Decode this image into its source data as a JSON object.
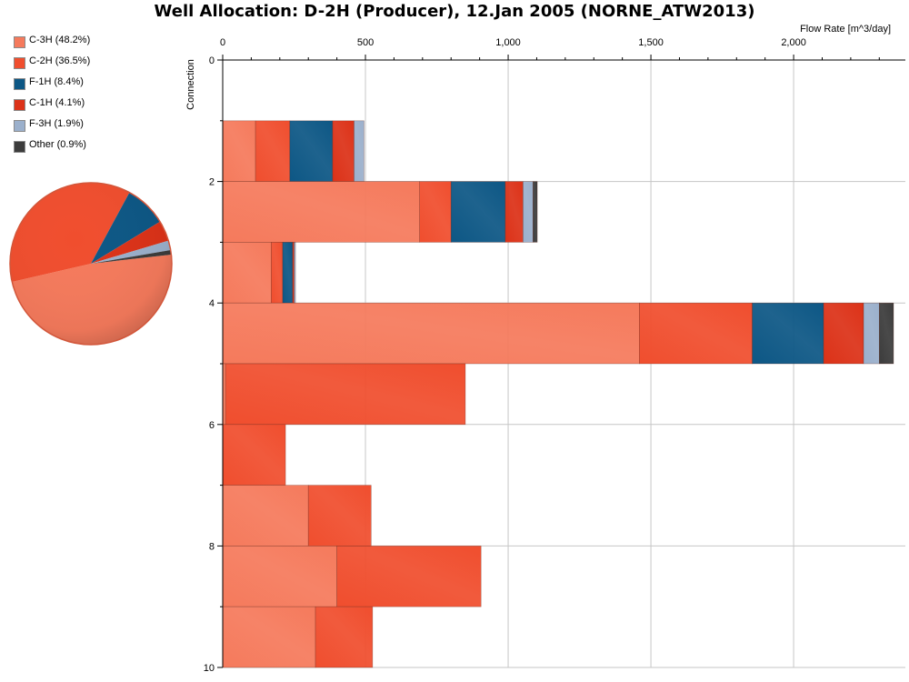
{
  "window": {
    "title": "Well Allocation: D-2H (Producer), 12.Jan 2005 (NORNE_ATW2013)"
  },
  "legend": {
    "items": [
      {
        "label": "C-3H (48.2%)",
        "color": "#f57a5c"
      },
      {
        "label": "C-2H (36.5%)",
        "color": "#f04e2e"
      },
      {
        "label": "F-1H (8.4%)",
        "color": "#0d5785"
      },
      {
        "label": "C-1H (4.1%)",
        "color": "#dc3218"
      },
      {
        "label": "F-3H (1.9%)",
        "color": "#9bb0cc"
      },
      {
        "label": "Other (0.9%)",
        "color": "#3c3c3c"
      }
    ]
  },
  "chart_data": [
    {
      "type": "pie",
      "title": "",
      "series": [
        {
          "name": "C-3H",
          "value": 48.2,
          "color": "#f57a5c"
        },
        {
          "name": "C-2H",
          "value": 36.5,
          "color": "#f04e2e"
        },
        {
          "name": "F-1H",
          "value": 8.4,
          "color": "#0d5785"
        },
        {
          "name": "C-1H",
          "value": 4.1,
          "color": "#dc3218"
        },
        {
          "name": "F-3H",
          "value": 1.9,
          "color": "#9bb0cc"
        },
        {
          "name": "Other",
          "value": 0.9,
          "color": "#3c3c3c"
        }
      ]
    },
    {
      "type": "bar",
      "orientation": "horizontal-stacked",
      "title": "Well Allocation: D-2H (Producer), 12.Jan 2005 (NORNE_ATW2013)",
      "xlabel": "Flow Rate [m^3/day]",
      "ylabel": "Connection",
      "xlim": [
        0,
        2350
      ],
      "ylim": [
        0,
        10
      ],
      "x_ticks": [
        0,
        500,
        1000,
        1500,
        2000
      ],
      "x_tick_labels": [
        "0",
        "500",
        "1,000",
        "1,500",
        "2,000"
      ],
      "y_ticks": [
        0,
        2,
        4,
        6,
        8,
        10
      ],
      "grid": true,
      "series_names": [
        "C-3H",
        "C-2H",
        "F-1H",
        "C-1H",
        "F-3H",
        "Other"
      ],
      "colors": [
        "#f57a5c",
        "#f04e2e",
        "#0d5785",
        "#dc3218",
        "#9bb0cc",
        "#3c3c3c"
      ],
      "segments": [
        {
          "y0": 1.0,
          "y1": 2.0,
          "values": [
            115,
            120,
            150,
            75,
            35,
            0
          ]
        },
        {
          "y0": 2.0,
          "y1": 3.0,
          "values": [
            690,
            110,
            190,
            62,
            35,
            15
          ]
        },
        {
          "y0": 3.0,
          "y1": 4.0,
          "values": [
            170,
            40,
            35,
            5,
            5,
            0
          ]
        },
        {
          "y0": 4.0,
          "y1": 5.0,
          "values": [
            1460,
            395,
            250,
            140,
            55,
            50
          ]
        },
        {
          "y0": 5.0,
          "y1": 6.0,
          "values": [
            10,
            840,
            0,
            0,
            0,
            0
          ]
        },
        {
          "y0": 6.0,
          "y1": 7.0,
          "values": [
            0,
            220,
            0,
            0,
            0,
            0
          ]
        },
        {
          "y0": 7.0,
          "y1": 8.0,
          "values": [
            300,
            220,
            0,
            0,
            0,
            0
          ]
        },
        {
          "y0": 8.0,
          "y1": 9.0,
          "values": [
            400,
            505,
            0,
            0,
            0,
            0
          ]
        },
        {
          "y0": 9.0,
          "y1": 10.0,
          "values": [
            325,
            200,
            0,
            0,
            0,
            0
          ]
        }
      ]
    }
  ]
}
